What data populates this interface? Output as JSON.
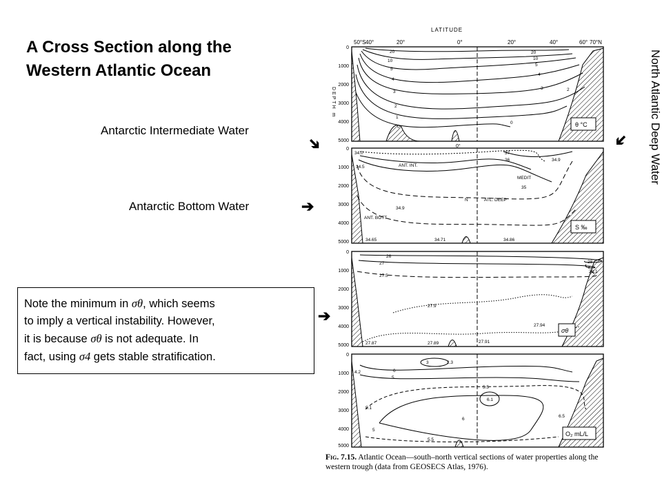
{
  "title_line1": "A Cross Section along the",
  "title_line2": "Western Atlantic Ocean",
  "labels": {
    "antarctic_intermediate": "Antarctic Intermediate Water",
    "antarctic_bottom": "Antarctic Bottom Water",
    "north_atlantic_deep": "North Atlantic Deep Water"
  },
  "arrow_glyph": "➔",
  "note": {
    "line1_pre": "Note the minimum in",
    "line1_post": ", which seems",
    "line2": "to imply a vertical instability. However,",
    "line3_pre": "it is because",
    "line3_post": "is not adequate. In",
    "line4_pre": "fact, using",
    "line4_post": "gets stable stratification.",
    "sym_sigma_theta": "σθ",
    "sym_sigma4": "σ4"
  },
  "figure": {
    "axis_title": "LATITUDE",
    "depth_title": "DEPTH m",
    "top_ticks": [
      "50°S",
      "40°",
      "20°",
      "0°",
      "20°",
      "40°",
      "60°",
      "70°N"
    ],
    "equator": "0°",
    "depth_ticks": [
      "0",
      "1000",
      "2000",
      "3000",
      "4000",
      "5000"
    ],
    "panel_labels": [
      "θ °C",
      "S ‰",
      "σθ",
      "O₂ mL/L"
    ],
    "panel1_isolines": [
      "20",
      "10",
      "5",
      "4",
      "3",
      "2",
      "1",
      "0",
      "20",
      "10",
      "5",
      "4",
      "3",
      "2",
      "0"
    ],
    "panel2_labels": [
      "34.0",
      "34.5",
      "ANT. INT.",
      "37",
      "36",
      "34.9",
      "MEDIT",
      "35",
      "34.9",
      "N",
      "ATL. DEEP",
      "ANT. BOTT",
      "34.65",
      "34.71",
      "34.86"
    ],
    "panel3_labels": [
      "26",
      "27",
      "27.5",
      "27.9",
      "28",
      "28.1",
      "27.94",
      "27.87",
      "27.89",
      "27.91"
    ],
    "panel4_labels": [
      "4.2",
      "3",
      "5",
      "2.3",
      "6",
      "5.5",
      "5.1",
      "6.1",
      "6",
      "6.5",
      "5",
      "5.5"
    ]
  },
  "caption": {
    "fig": "Fig. 7.15.",
    "text": "Atlantic Ocean—south–north vertical sections of water properties along the western trough (data from GEOSECS Atlas, 1976)."
  }
}
